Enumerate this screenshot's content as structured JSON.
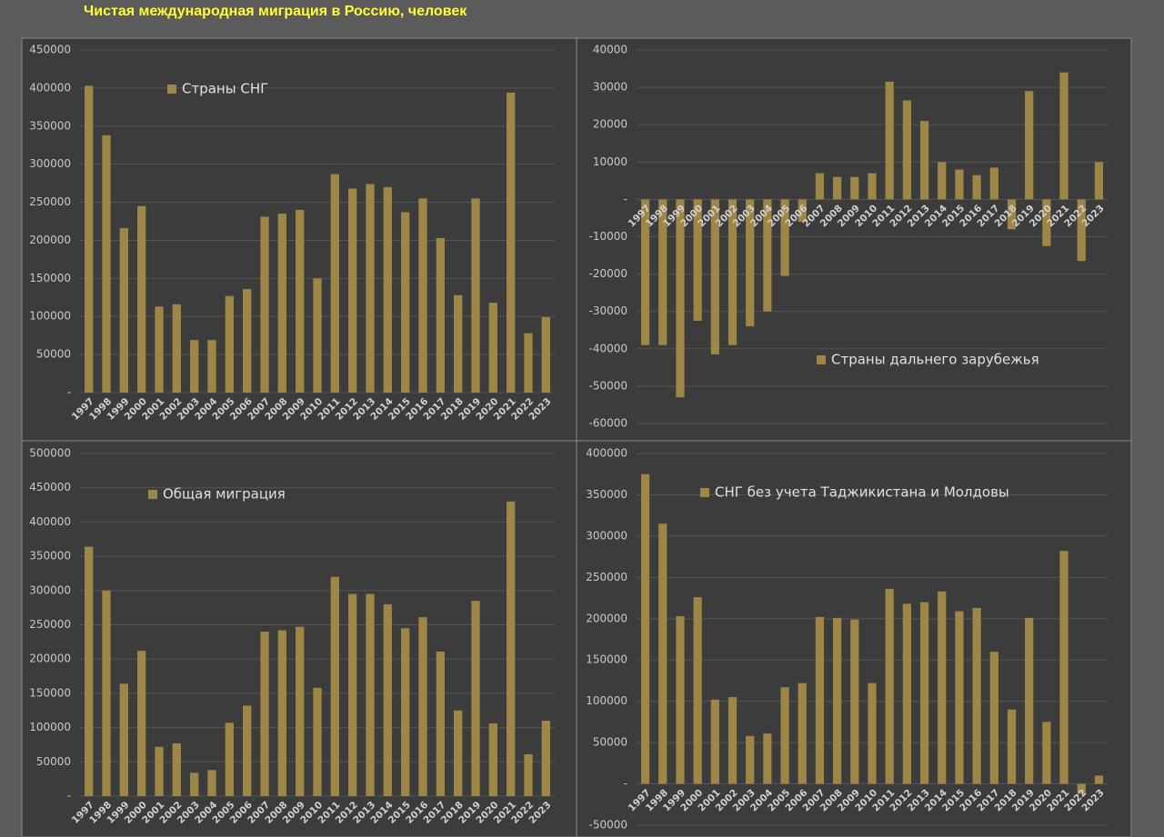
{
  "title": "Чистая международная миграция в Россию, человек",
  "chart_data": [
    {
      "type": "bar",
      "categories": [
        "1997",
        "1998",
        "1999",
        "2000",
        "2001",
        "2002",
        "2003",
        "2004",
        "2005",
        "2006",
        "2007",
        "2008",
        "2009",
        "2010",
        "2011",
        "2012",
        "2013",
        "2014",
        "2015",
        "2016",
        "2017",
        "2018",
        "2019",
        "2020",
        "2021",
        "2022",
        "2023"
      ],
      "series": [
        {
          "name": "Страны СНГ",
          "color": "#9e8746",
          "values": [
            403000,
            338000,
            216000,
            245000,
            113000,
            116000,
            69000,
            69000,
            127000,
            136000,
            231000,
            235000,
            240000,
            150000,
            287000,
            268000,
            274000,
            270000,
            237000,
            255000,
            203000,
            128000,
            255000,
            118000,
            394000,
            78000,
            99000
          ]
        }
      ],
      "ylim": [
        0,
        450000
      ],
      "yticks": [
        {
          "value": 0,
          "label": "-"
        },
        50000,
        100000,
        150000,
        200000,
        250000,
        300000,
        350000,
        400000,
        450000
      ],
      "grid": true
    },
    {
      "type": "bar",
      "categories": [
        "1997",
        "1998",
        "1999",
        "2000",
        "2001",
        "2002",
        "2003",
        "2004",
        "2005",
        "2006",
        "2007",
        "2008",
        "2009",
        "2010",
        "2011",
        "2012",
        "2013",
        "2014",
        "2015",
        "2016",
        "2017",
        "2018",
        "2019",
        "2020",
        "2021",
        "2022",
        "2023"
      ],
      "series": [
        {
          "name": "Страны дальнего зарубежья",
          "color": "#9e8746",
          "values": [
            -39000,
            -39000,
            -53000,
            -32500,
            -41500,
            -39000,
            -34000,
            -30000,
            -20500,
            -6000,
            7000,
            6000,
            6000,
            7000,
            31500,
            26500,
            21000,
            10000,
            8000,
            6500,
            8500,
            -8000,
            29000,
            -12500,
            34000,
            -16500,
            10000
          ]
        }
      ],
      "ylim": [
        -60000,
        40000
      ],
      "yticks": [
        -60000,
        -50000,
        -40000,
        -30000,
        -20000,
        -10000,
        {
          "value": 0,
          "label": "-"
        },
        10000,
        20000,
        30000,
        40000
      ],
      "grid": true
    },
    {
      "type": "bar",
      "categories": [
        "1997",
        "1998",
        "1999",
        "2000",
        "2001",
        "2002",
        "2003",
        "2004",
        "2005",
        "2006",
        "2007",
        "2008",
        "2009",
        "2010",
        "2011",
        "2012",
        "2013",
        "2014",
        "2015",
        "2016",
        "2017",
        "2018",
        "2019",
        "2020",
        "2021",
        "2022",
        "2023"
      ],
      "series": [
        {
          "name": "Общая миграция",
          "color": "#9e8746",
          "values": [
            364000,
            300000,
            164000,
            212000,
            72000,
            77000,
            34000,
            38000,
            107000,
            132000,
            240000,
            242000,
            247000,
            158000,
            320000,
            295000,
            295000,
            280000,
            245000,
            261000,
            211000,
            125000,
            285000,
            106000,
            430000,
            61000,
            110000
          ]
        }
      ],
      "ylim": [
        0,
        500000
      ],
      "yticks": [
        {
          "value": 0,
          "label": "-"
        },
        50000,
        100000,
        150000,
        200000,
        250000,
        300000,
        350000,
        400000,
        450000,
        500000
      ],
      "grid": true
    },
    {
      "type": "bar",
      "categories": [
        "1997",
        "1998",
        "1999",
        "2000",
        "2001",
        "2002",
        "2003",
        "2004",
        "2005",
        "2006",
        "2007",
        "2008",
        "2009",
        "2010",
        "2011",
        "2012",
        "2013",
        "2014",
        "2015",
        "2016",
        "2017",
        "2018",
        "2019",
        "2020",
        "2021",
        "2022",
        "2023"
      ],
      "series": [
        {
          "name": "СНГ без учета Таджикистана и Молдовы",
          "color": "#9e8746",
          "values": [
            375000,
            315000,
            203000,
            226000,
            102000,
            105000,
            58000,
            61000,
            117000,
            122000,
            202000,
            201000,
            199000,
            122000,
            236000,
            218000,
            220000,
            233000,
            209000,
            213000,
            160000,
            90000,
            201000,
            75000,
            282000,
            -12000,
            10000
          ]
        }
      ],
      "ylim": [
        -50000,
        400000
      ],
      "yticks": [
        -50000,
        {
          "value": 0,
          "label": "-"
        },
        50000,
        100000,
        150000,
        200000,
        250000,
        300000,
        350000,
        400000
      ],
      "grid": true
    }
  ]
}
